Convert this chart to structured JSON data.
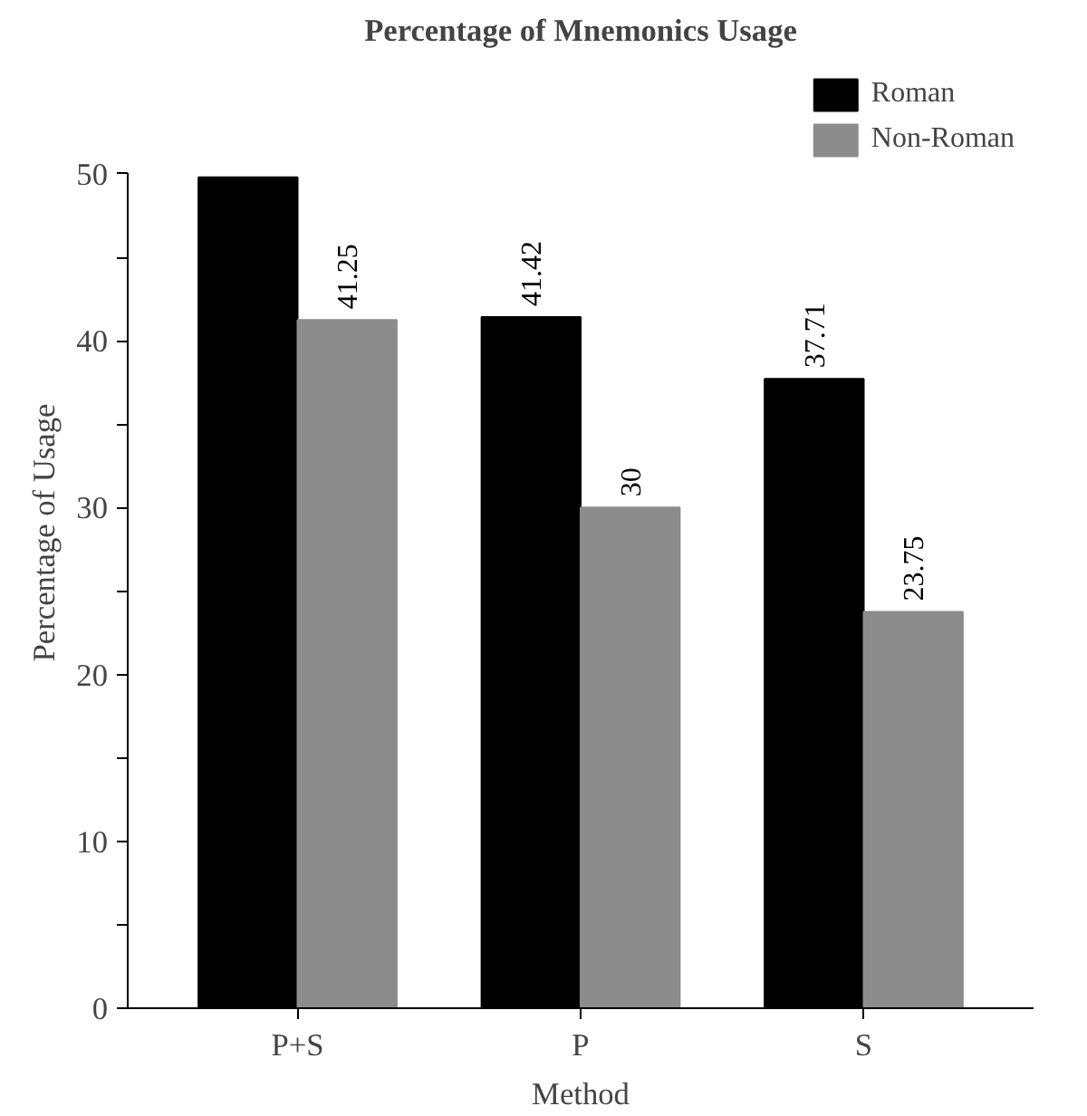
{
  "chart_data": {
    "type": "bar",
    "title": "Percentage of Mnemonics Usage",
    "xlabel": "Method",
    "ylabel": "Percentage of Usage",
    "categories": [
      "P+S",
      "P",
      "S"
    ],
    "series": [
      {
        "name": "Roman",
        "color": "#000000",
        "values": [
          49.8,
          41.42,
          37.71
        ],
        "value_labels": [
          null,
          "41.42",
          "37.71"
        ]
      },
      {
        "name": "Non-Roman",
        "color": "#8c8c8c",
        "values": [
          41.25,
          30,
          23.75
        ],
        "value_labels": [
          "41.25",
          "30",
          "23.75"
        ]
      }
    ],
    "ylim": [
      0,
      50
    ],
    "yticks": [
      0,
      {
        "value": 5,
        "label": null
      },
      10,
      {
        "value": 15,
        "label": null
      },
      20,
      {
        "value": 25,
        "label": null
      },
      30,
      {
        "value": 35,
        "label": null
      },
      40,
      {
        "value": 45,
        "label": null
      },
      50
    ],
    "grid": false,
    "legend": "top right"
  }
}
